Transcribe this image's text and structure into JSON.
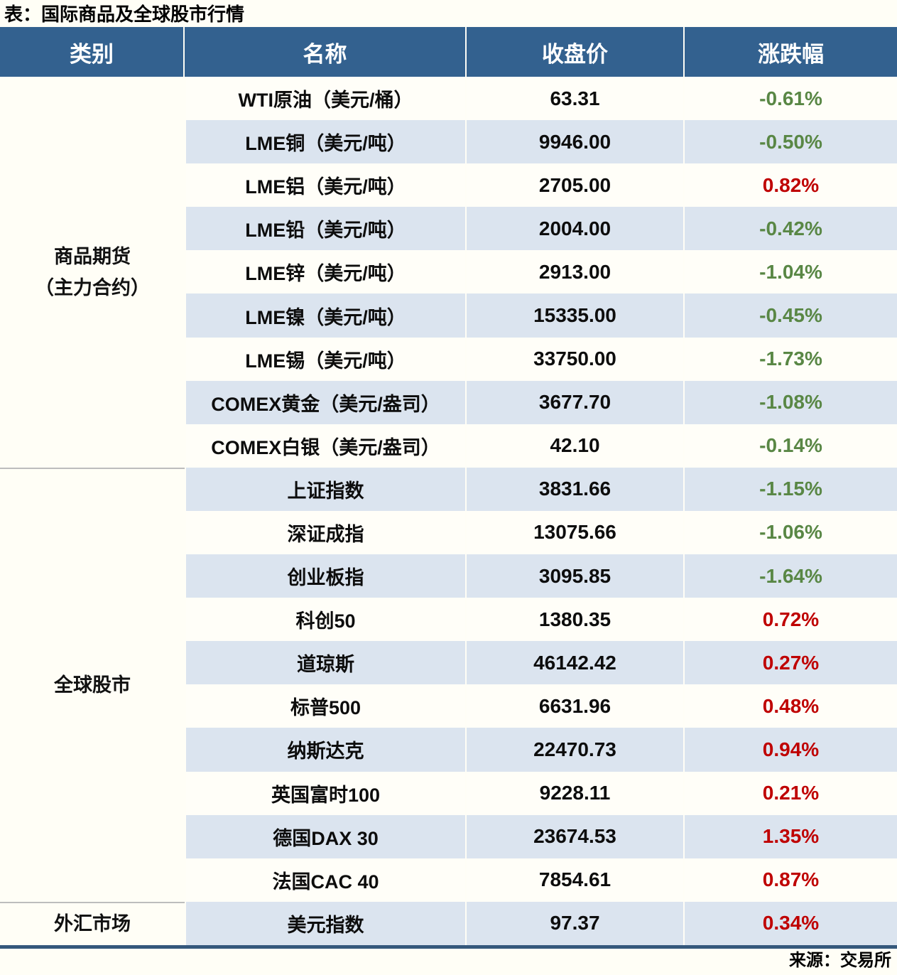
{
  "title": "表：国际商品及全球股市行情",
  "source": "来源：交易所",
  "colors": {
    "header_bg": "#33618f",
    "row_alt_bg": "#dbe4ef",
    "positive_red": "#bf0000",
    "negative_green": "#598745",
    "section_divider": "#bdbdbd",
    "bottom_border": "#35587c"
  },
  "chart_data": {
    "type": "table",
    "title": "表：国际商品及全球股市行情",
    "columns": [
      "类别",
      "名称",
      "收盘价",
      "涨跌幅"
    ],
    "sections": [
      {
        "category": "商品期货（主力合约）",
        "category_lines": [
          "商品期货",
          "（主力合约）"
        ],
        "rows": "1-9"
      },
      {
        "category": "全球股市",
        "category_lines": [
          "全球股市"
        ],
        "rows": "10-19"
      },
      {
        "category": "外汇市场",
        "category_lines": [
          "外汇市场"
        ],
        "rows": "20"
      }
    ],
    "rows": [
      {
        "category": "商品期货（主力合约）",
        "name": "WTI原油（美元/桶）",
        "close": "63.31",
        "change": "-0.61%"
      },
      {
        "category": "商品期货（主力合约）",
        "name": "LME铜（美元/吨）",
        "close": "9946.00",
        "change": "-0.50%"
      },
      {
        "category": "商品期货（主力合约）",
        "name": "LME铝（美元/吨）",
        "close": "2705.00",
        "change": "0.82%"
      },
      {
        "category": "商品期货（主力合约）",
        "name": "LME铅（美元/吨）",
        "close": "2004.00",
        "change": "-0.42%"
      },
      {
        "category": "商品期货（主力合约）",
        "name": "LME锌（美元/吨）",
        "close": "2913.00",
        "change": "-1.04%"
      },
      {
        "category": "商品期货（主力合约）",
        "name": "LME镍（美元/吨）",
        "close": "15335.00",
        "change": "-0.45%"
      },
      {
        "category": "商品期货（主力合约）",
        "name": "LME锡（美元/吨）",
        "close": "33750.00",
        "change": "-1.73%"
      },
      {
        "category": "商品期货（主力合约）",
        "name": "COMEX黄金（美元/盎司）",
        "close": "3677.70",
        "change": "-1.08%"
      },
      {
        "category": "商品期货（主力合约）",
        "name": "COMEX白银（美元/盎司）",
        "close": "42.10",
        "change": "-0.14%"
      },
      {
        "category": "全球股市",
        "name": "上证指数",
        "close": "3831.66",
        "change": "-1.15%"
      },
      {
        "category": "全球股市",
        "name": "深证成指",
        "close": "13075.66",
        "change": "-1.06%"
      },
      {
        "category": "全球股市",
        "name": "创业板指",
        "close": "3095.85",
        "change": "-1.64%"
      },
      {
        "category": "全球股市",
        "name": "科创50",
        "close": "1380.35",
        "change": "0.72%"
      },
      {
        "category": "全球股市",
        "name": "道琼斯",
        "close": "46142.42",
        "change": "0.27%"
      },
      {
        "category": "全球股市",
        "name": "标普500",
        "close": "6631.96",
        "change": "0.48%"
      },
      {
        "category": "全球股市",
        "name": "纳斯达克",
        "close": "22470.73",
        "change": "0.94%"
      },
      {
        "category": "全球股市",
        "name": "英国富时100",
        "close": "9228.11",
        "change": "0.21%"
      },
      {
        "category": "全球股市",
        "name": "德国DAX 30",
        "close": "23674.53",
        "change": "1.35%"
      },
      {
        "category": "全球股市",
        "name": "法国CAC 40",
        "close": "7854.61",
        "change": "0.87%"
      },
      {
        "category": "外汇市场",
        "name": "美元指数",
        "close": "97.37",
        "change": "0.34%"
      }
    ]
  }
}
